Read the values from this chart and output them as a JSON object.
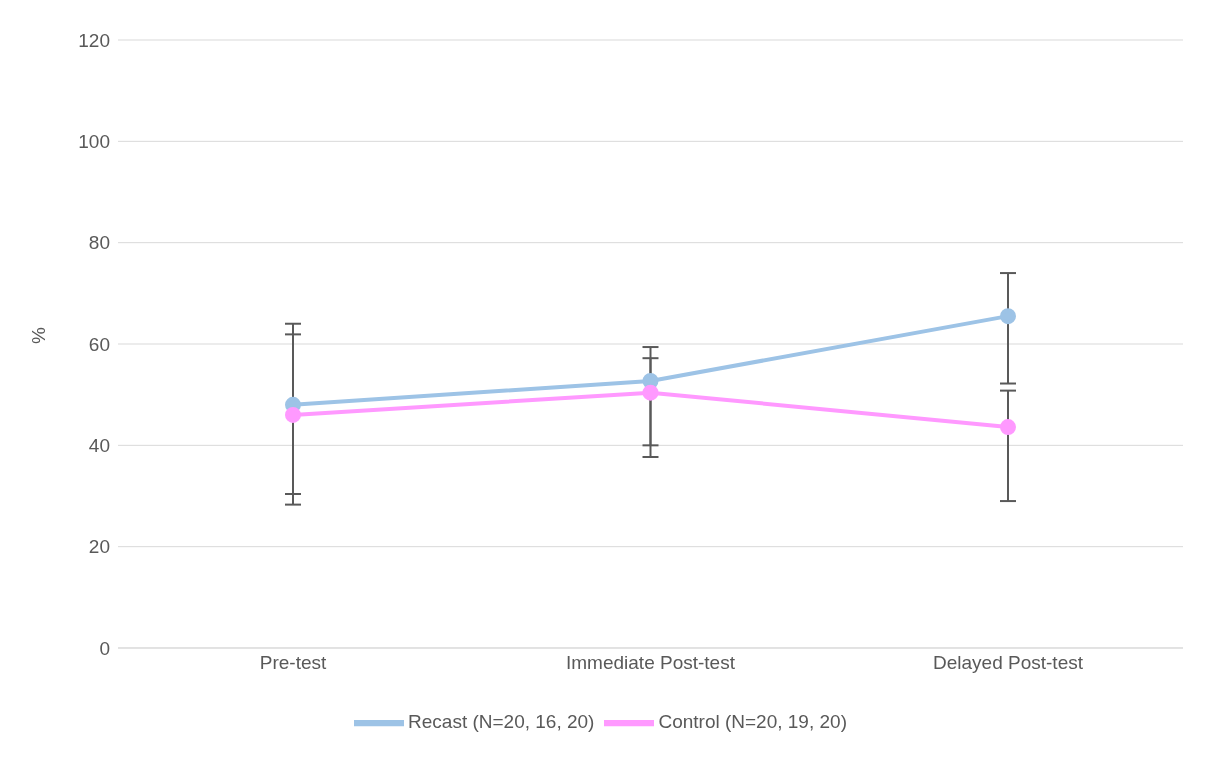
{
  "chart_data": {
    "type": "line",
    "ylabel": "%",
    "categories": [
      "Pre-test",
      "Immediate Post-test",
      "Delayed Post-test"
    ],
    "series": [
      {
        "name": "Recast (N=20, 16, 20)",
        "color": "#9dc3e6",
        "values": [
          48,
          52.7,
          65.5
        ],
        "errors": [
          [
            30.4,
            64
          ],
          [
            40,
            59.4
          ],
          [
            52.2,
            74
          ]
        ]
      },
      {
        "name": "Control (N=20, 19, 20)",
        "color": "#ff99ff",
        "values": [
          46,
          50.4,
          43.6
        ],
        "errors": [
          [
            28.3,
            61.9
          ],
          [
            37.7,
            57.2
          ],
          [
            29,
            50.8
          ]
        ]
      }
    ],
    "ylim": [
      0,
      120
    ],
    "yticks": [
      0,
      20,
      40,
      60,
      80,
      100,
      120
    ],
    "grid": "y",
    "legend": "bottom",
    "marker": "circle",
    "line_style": "solid"
  }
}
